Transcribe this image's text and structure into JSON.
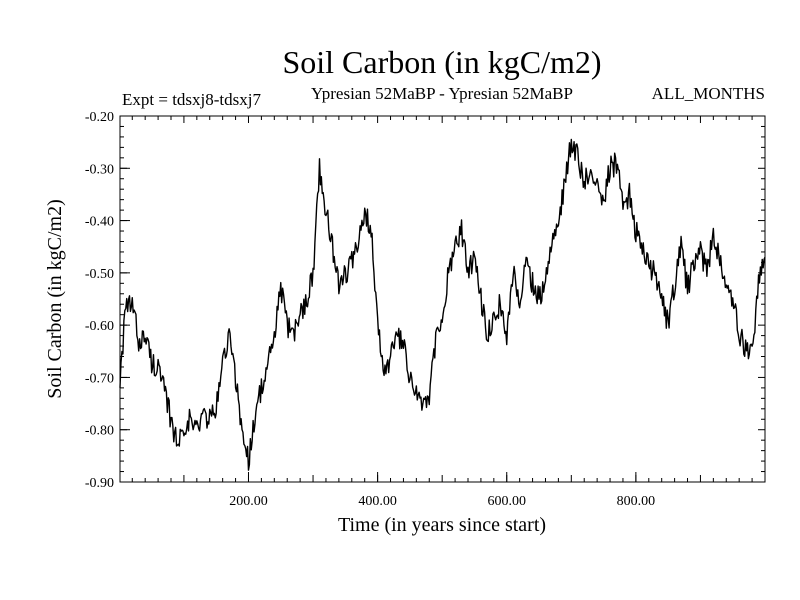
{
  "chart_data": {
    "type": "line",
    "title": "Soil Carbon (in kgC/m2)",
    "subtitle_left": "Expt = tdsxj8-tdsxj7",
    "subtitle_center": "Ypresian  52MaBP - Ypresian  52MaBP",
    "subtitle_right": "ALL_MONTHS",
    "xlabel": "Time (in years since start)",
    "ylabel": "Soil Carbon (in kgC/m2)",
    "xlim": [
      1,
      1000
    ],
    "ylim": [
      -0.9,
      -0.2
    ],
    "xticks": [
      200,
      400,
      600,
      800
    ],
    "xtick_labels": [
      "200.00",
      "400.00",
      "600.00",
      "800.00"
    ],
    "yticks": [
      -0.2,
      -0.3,
      -0.4,
      -0.5,
      -0.6,
      -0.7,
      -0.8,
      -0.9
    ],
    "ytick_labels": [
      "-0.20",
      "-0.30",
      "-0.40",
      "-0.50",
      "-0.60",
      "-0.70",
      "-0.80",
      "-0.90"
    ],
    "grid": false,
    "series": [
      {
        "name": "Soil Carbon",
        "x": [
          1,
          10,
          20,
          30,
          40,
          50,
          60,
          70,
          80,
          90,
          100,
          110,
          120,
          130,
          140,
          150,
          160,
          170,
          180,
          190,
          200,
          210,
          220,
          230,
          240,
          250,
          260,
          270,
          280,
          290,
          300,
          310,
          320,
          330,
          340,
          350,
          360,
          370,
          380,
          390,
          400,
          410,
          420,
          430,
          440,
          450,
          460,
          470,
          480,
          490,
          500,
          510,
          520,
          530,
          540,
          550,
          560,
          570,
          580,
          590,
          600,
          610,
          620,
          630,
          640,
          650,
          660,
          670,
          680,
          690,
          700,
          710,
          720,
          730,
          740,
          750,
          760,
          770,
          780,
          790,
          800,
          810,
          820,
          830,
          840,
          850,
          860,
          870,
          880,
          890,
          900,
          910,
          920,
          930,
          940,
          950,
          960,
          970,
          980,
          990,
          1000
        ],
        "values": [
          -0.7,
          -0.57,
          -0.56,
          -0.63,
          -0.62,
          -0.67,
          -0.68,
          -0.73,
          -0.78,
          -0.83,
          -0.79,
          -0.78,
          -0.8,
          -0.77,
          -0.78,
          -0.76,
          -0.67,
          -0.62,
          -0.7,
          -0.8,
          -0.86,
          -0.77,
          -0.72,
          -0.68,
          -0.62,
          -0.53,
          -0.6,
          -0.62,
          -0.58,
          -0.55,
          -0.5,
          -0.3,
          -0.38,
          -0.45,
          -0.52,
          -0.5,
          -0.48,
          -0.45,
          -0.38,
          -0.42,
          -0.58,
          -0.7,
          -0.66,
          -0.62,
          -0.64,
          -0.71,
          -0.72,
          -0.76,
          -0.74,
          -0.63,
          -0.58,
          -0.5,
          -0.45,
          -0.42,
          -0.5,
          -0.47,
          -0.55,
          -0.62,
          -0.58,
          -0.56,
          -0.62,
          -0.5,
          -0.55,
          -0.48,
          -0.52,
          -0.55,
          -0.52,
          -0.43,
          -0.4,
          -0.33,
          -0.25,
          -0.28,
          -0.33,
          -0.3,
          -0.32,
          -0.36,
          -0.3,
          -0.29,
          -0.37,
          -0.35,
          -0.42,
          -0.45,
          -0.49,
          -0.5,
          -0.55,
          -0.6,
          -0.52,
          -0.45,
          -0.53,
          -0.48,
          -0.46,
          -0.5,
          -0.43,
          -0.47,
          -0.52,
          -0.55,
          -0.62,
          -0.64,
          -0.65,
          -0.52,
          -0.47
        ]
      }
    ]
  }
}
